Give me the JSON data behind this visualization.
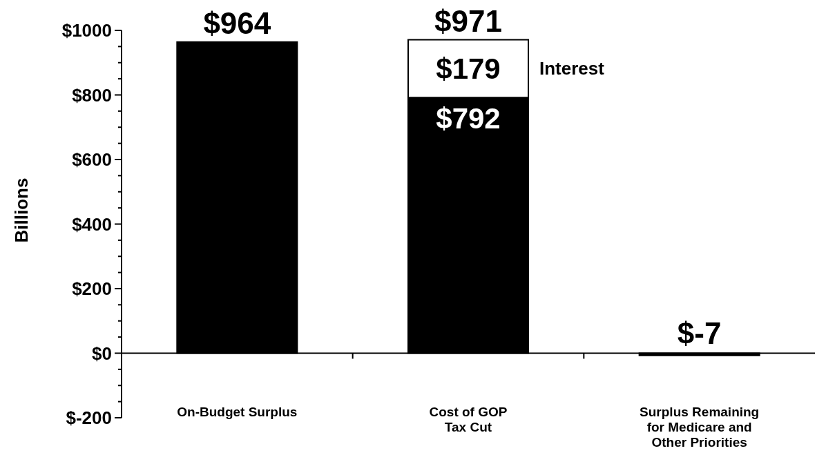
{
  "chart_data": {
    "type": "bar",
    "stacked": true,
    "ylabel": "Billions",
    "categories": [
      "On-Budget Surplus",
      "Cost of GOP\nTax Cut",
      "Surplus Remaining\nfor Medicare and\nOther Priorities"
    ],
    "series": [
      {
        "color": "#000000",
        "values": [
          964,
          792,
          -7
        ],
        "value_labels": [
          null,
          "$792",
          null
        ]
      },
      {
        "name": "Interest",
        "color": "#ffffff",
        "values": [
          null,
          179,
          null
        ],
        "value_labels": [
          null,
          "$179",
          null
        ]
      }
    ],
    "totals": [
      "$964",
      "$971",
      "$-7"
    ],
    "ylim": [
      -200,
      1000
    ],
    "yticks": [
      {
        "value": -200,
        "label": "$-200"
      },
      {
        "value": -150,
        "label": null
      },
      {
        "value": -100,
        "label": null
      },
      {
        "value": -50,
        "label": null
      },
      {
        "value": 0,
        "label": "$0"
      },
      {
        "value": 50,
        "label": null
      },
      {
        "value": 100,
        "label": null
      },
      {
        "value": 150,
        "label": null
      },
      {
        "value": 200,
        "label": "$200"
      },
      {
        "value": 250,
        "label": null
      },
      {
        "value": 300,
        "label": null
      },
      {
        "value": 350,
        "label": null
      },
      {
        "value": 400,
        "label": "$400"
      },
      {
        "value": 450,
        "label": null
      },
      {
        "value": 500,
        "label": null
      },
      {
        "value": 550,
        "label": null
      },
      {
        "value": 600,
        "label": "$600"
      },
      {
        "value": 650,
        "label": null
      },
      {
        "value": 700,
        "label": null
      },
      {
        "value": 750,
        "label": null
      },
      {
        "value": 800,
        "label": "$800"
      },
      {
        "value": 850,
        "label": null
      },
      {
        "value": 900,
        "label": null
      },
      {
        "value": 950,
        "label": null
      },
      {
        "value": 1000,
        "label": "$1000"
      }
    ],
    "tick_labels": true
  }
}
